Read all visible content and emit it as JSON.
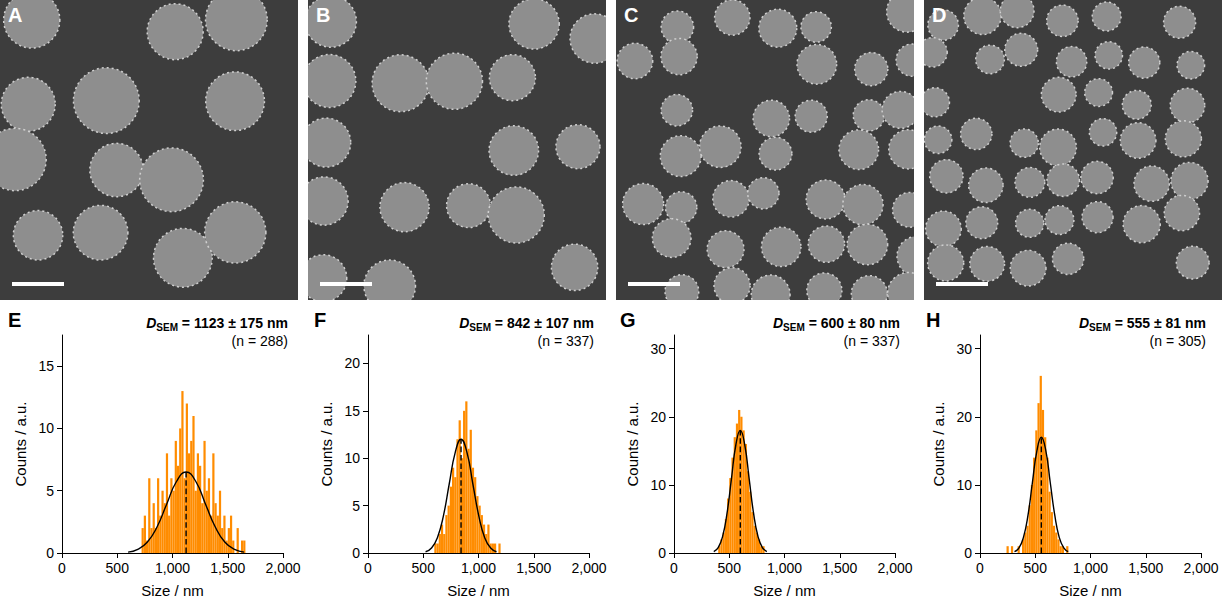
{
  "micrographs": [
    "A",
    "B",
    "C",
    "D"
  ],
  "chart_data": [
    {
      "panel_label": "E",
      "type": "histogram",
      "annotation": {
        "symbol": "D",
        "subscript": "SEM",
        "text": " = 1123 ± 175 nm"
      },
      "n_label": "(n = 288)",
      "x_label": "Size / nm",
      "y_label": "Counts / a.u.",
      "bins": [
        720,
        740,
        760,
        780,
        800,
        820,
        840,
        860,
        880,
        900,
        920,
        940,
        960,
        980,
        1000,
        1020,
        1040,
        1060,
        1080,
        1100,
        1120,
        1140,
        1160,
        1180,
        1200,
        1220,
        1240,
        1260,
        1280,
        1300,
        1320,
        1340,
        1360,
        1380,
        1400,
        1420,
        1440,
        1460,
        1480,
        1500,
        1520,
        1540,
        1560,
        1580,
        1600,
        1620,
        1640,
        1660
      ],
      "counts": [
        2,
        3,
        1,
        6,
        2,
        4,
        2,
        6,
        3,
        5,
        4,
        8,
        3,
        6,
        5,
        9,
        7,
        10,
        13,
        6,
        12,
        8,
        9,
        11,
        5,
        8,
        7,
        4,
        9,
        5,
        6,
        3,
        8,
        4,
        3,
        5,
        2,
        3,
        1,
        2,
        3,
        1,
        0,
        2,
        0,
        1,
        1
      ],
      "color": "#ff8c00",
      "fit": {
        "x": [
          598,
          686,
          773,
          861,
          948,
          1036,
          1123,
          1211,
          1298,
          1386,
          1473,
          1561,
          1648
        ],
        "values": [
          0.07,
          0.29,
          0.88,
          2.11,
          3.94,
          5.74,
          6.5,
          5.74,
          3.94,
          2.11,
          0.88,
          0.29,
          0.07
        ],
        "color": "#000000",
        "line_style": "solid"
      },
      "mean_line": {
        "x": [
          1123,
          1123
        ],
        "values": [
          0,
          6.5
        ],
        "color": "#000000",
        "line_style": "dashed"
      },
      "xlim": [
        0,
        2000
      ],
      "xticks": [
        0,
        500,
        1000,
        1500,
        2000
      ],
      "ylim": [
        0,
        17.5
      ],
      "yticks": [
        0,
        5,
        10,
        15
      ],
      "grid": false
    },
    {
      "panel_label": "F",
      "type": "histogram",
      "annotation": {
        "symbol": "D",
        "subscript": "SEM",
        "text": " = 842 ± 107 nm"
      },
      "n_label": "(n = 337)",
      "x_label": "Size / nm",
      "y_label": "Counts / a.u.",
      "bins": [
        600,
        620,
        640,
        660,
        680,
        700,
        720,
        740,
        760,
        780,
        800,
        820,
        840,
        860,
        880,
        900,
        920,
        940,
        960,
        980,
        1000,
        1020,
        1040,
        1060,
        1080,
        1100,
        1120,
        1140,
        1160,
        1180,
        1200
      ],
      "counts": [
        1,
        1,
        2,
        3,
        2,
        4,
        5,
        7,
        9,
        8,
        12,
        14,
        10,
        15,
        16,
        11,
        13,
        9,
        8,
        6,
        5,
        4,
        3,
        2,
        3,
        1,
        1,
        1,
        0,
        1
      ],
      "color": "#ff8c00",
      "fit": {
        "x": [
          521,
          575,
          628,
          682,
          735,
          789,
          842,
          896,
          949,
          1003,
          1056,
          1110,
          1163
        ],
        "values": [
          0.13,
          0.53,
          1.62,
          3.9,
          7.28,
          10.59,
          12,
          10.59,
          7.28,
          3.9,
          1.62,
          0.53,
          0.13
        ],
        "color": "#000000",
        "line_style": "solid"
      },
      "mean_line": {
        "x": [
          842,
          842
        ],
        "values": [
          0,
          12
        ],
        "color": "#000000",
        "line_style": "dashed"
      },
      "xlim": [
        0,
        2000
      ],
      "xticks": [
        0,
        500,
        1000,
        1500,
        2000
      ],
      "ylim": [
        0,
        23
      ],
      "yticks": [
        0,
        5,
        10,
        15,
        20
      ],
      "grid": false
    },
    {
      "panel_label": "G",
      "type": "histogram",
      "annotation": {
        "symbol": "D",
        "subscript": "SEM",
        "text": " = 600 ± 80 nm"
      },
      "n_label": "(n = 337)",
      "x_label": "Size / nm",
      "y_label": "Counts / a.u.",
      "bins": [
        400,
        420,
        440,
        460,
        480,
        500,
        520,
        540,
        560,
        580,
        600,
        620,
        640,
        660,
        680,
        700,
        720,
        740,
        760,
        780,
        800,
        820
      ],
      "counts": [
        1,
        2,
        3,
        5,
        8,
        11,
        14,
        17,
        19,
        21,
        20,
        18,
        16,
        12,
        9,
        6,
        4,
        3,
        2,
        1,
        1
      ],
      "color": "#ff8c00",
      "fit": {
        "x": [
          360,
          400,
          440,
          480,
          520,
          560,
          600,
          640,
          680,
          720,
          760,
          800,
          840
        ],
        "values": [
          0.2,
          0.79,
          2.44,
          5.84,
          10.92,
          15.89,
          18,
          15.89,
          10.92,
          5.84,
          2.44,
          0.79,
          0.2
        ],
        "color": "#000000",
        "line_style": "solid"
      },
      "mean_line": {
        "x": [
          600,
          600
        ],
        "values": [
          0,
          18
        ],
        "color": "#000000",
        "line_style": "dashed"
      },
      "xlim": [
        0,
        2000
      ],
      "xticks": [
        0,
        500,
        1000,
        1500,
        2000
      ],
      "ylim": [
        0,
        32
      ],
      "yticks": [
        0,
        10,
        20,
        30
      ],
      "grid": false
    },
    {
      "panel_label": "H",
      "type": "histogram",
      "annotation": {
        "symbol": "D",
        "subscript": "SEM",
        "text": " = 555 ± 81 nm"
      },
      "n_label": "(n = 305)",
      "x_label": "Size / nm",
      "y_label": "Counts / a.u.",
      "bins": [
        240,
        260,
        280,
        300,
        320,
        340,
        360,
        380,
        400,
        420,
        440,
        460,
        480,
        500,
        520,
        540,
        560,
        580,
        600,
        620,
        640,
        660,
        680,
        700,
        720,
        740,
        760,
        780,
        800
      ],
      "counts": [
        1,
        0,
        1,
        0,
        0,
        1,
        0,
        2,
        3,
        4,
        7,
        10,
        14,
        18,
        22,
        26,
        21,
        17,
        14,
        9,
        6,
        4,
        3,
        2,
        1,
        1,
        0,
        1
      ],
      "color": "#ff8c00",
      "fit": {
        "x": [
          312,
          353,
          393,
          434,
          474,
          515,
          555,
          596,
          636,
          677,
          717,
          758,
          798
        ],
        "values": [
          0.19,
          0.75,
          2.3,
          5.52,
          10.31,
          15.0,
          17,
          15.0,
          10.31,
          5.52,
          2.3,
          0.75,
          0.19
        ],
        "color": "#000000",
        "line_style": "solid"
      },
      "mean_line": {
        "x": [
          555,
          555
        ],
        "values": [
          0,
          17
        ],
        "color": "#000000",
        "line_style": "dashed"
      },
      "xlim": [
        0,
        2000
      ],
      "xticks": [
        0,
        500,
        1000,
        1500,
        2000
      ],
      "ylim": [
        0,
        32
      ],
      "yticks": [
        0,
        10,
        20,
        30
      ],
      "grid": false
    }
  ]
}
